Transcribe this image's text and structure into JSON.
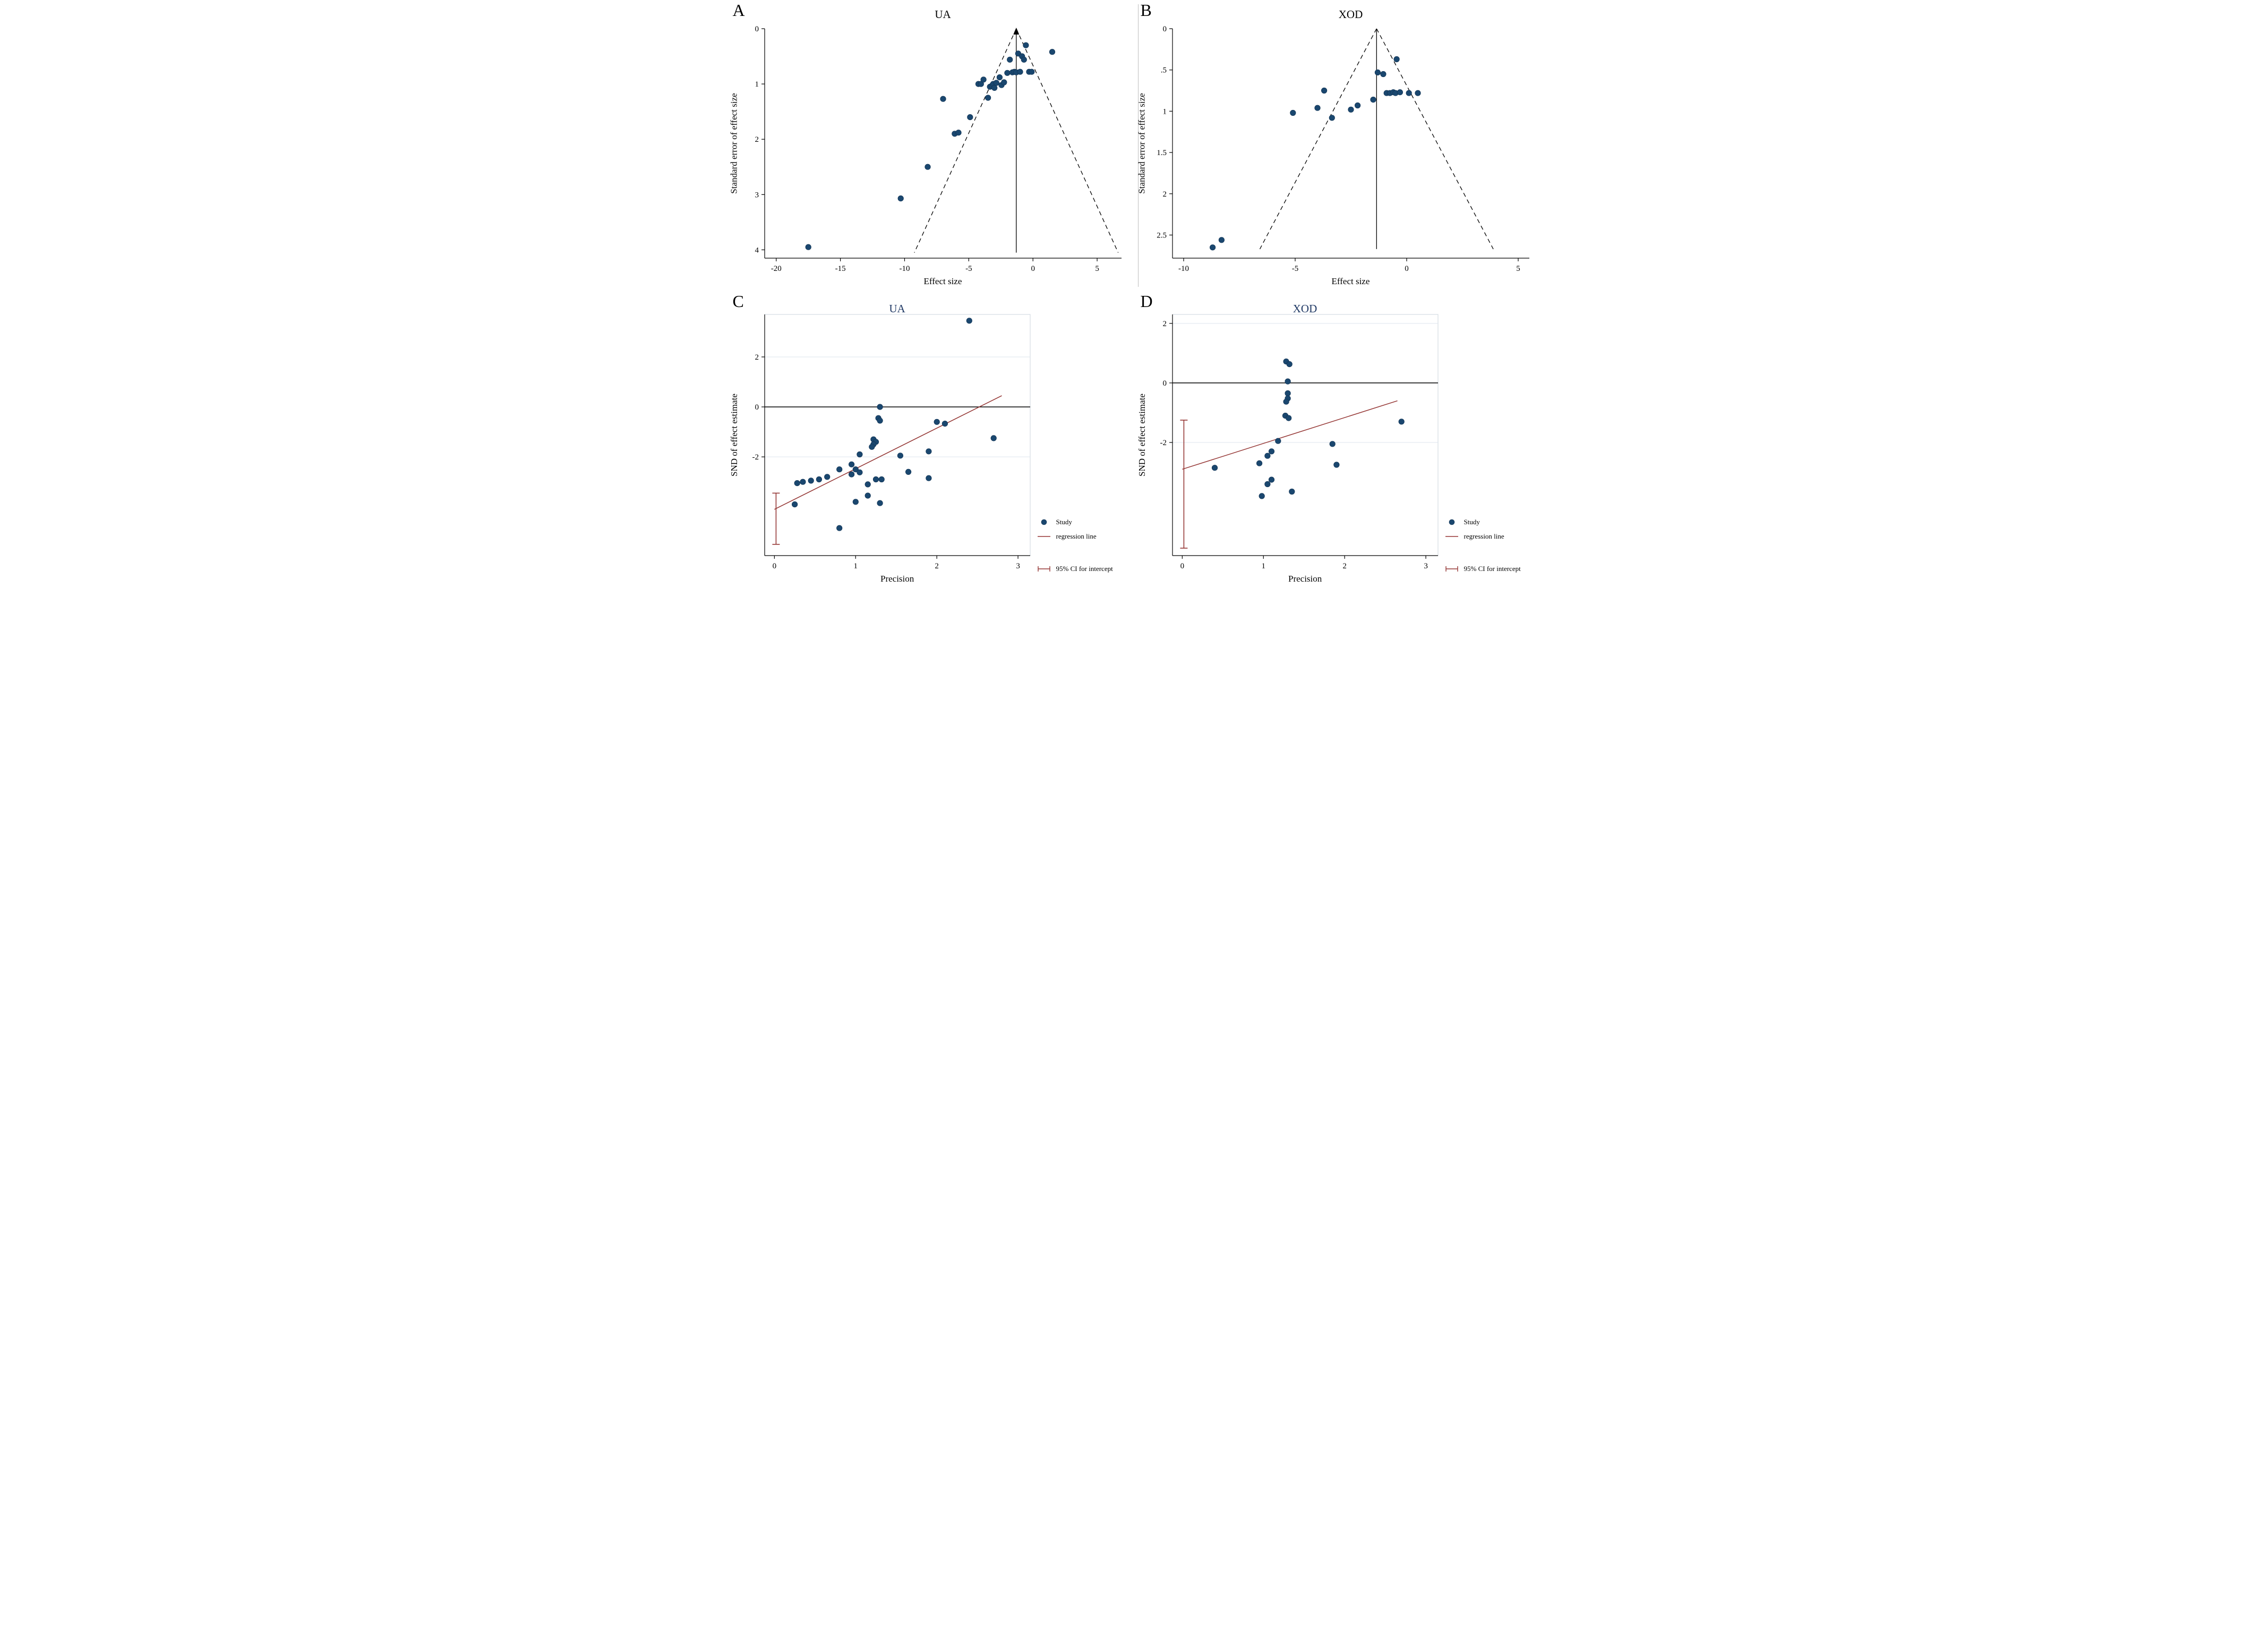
{
  "colors": {
    "point": "#1a476f",
    "point_edge": "#10304f",
    "regression": "#953735",
    "grid": "#dde5ed",
    "frame": "#ccd5dd",
    "axis": "#000000",
    "title_cd": "#1f3864",
    "divider": "#bdbdbd"
  },
  "chart_data": [
    {
      "id": "A",
      "panel_label": "A",
      "type": "scatter",
      "subtype": "funnel",
      "title": "UA",
      "xlabel": "Effect size",
      "ylabel": "Standard error of effect size",
      "xlim": [
        -20.9,
        6.9
      ],
      "xticks": [
        -20,
        -15,
        -10,
        -5,
        0,
        5
      ],
      "ylim": [
        0,
        4.15
      ],
      "y_inverted": true,
      "yticks": [
        0,
        1,
        2,
        3,
        4
      ],
      "ytick_labels": [
        "0",
        "1",
        "2",
        "3",
        "4"
      ],
      "grid": false,
      "center_line_x": -1.3,
      "pseudo_ci_max_se": 4.05,
      "arrow_top": true,
      "points": [
        [
          -17.5,
          3.95
        ],
        [
          -10.3,
          3.07
        ],
        [
          -8.2,
          2.5
        ],
        [
          -7.0,
          1.27
        ],
        [
          -6.1,
          1.9
        ],
        [
          -5.8,
          1.88
        ],
        [
          -4.9,
          1.6
        ],
        [
          -4.25,
          1.0
        ],
        [
          -4.05,
          1.0
        ],
        [
          -3.85,
          0.92
        ],
        [
          -3.5,
          1.25
        ],
        [
          -3.35,
          1.05
        ],
        [
          -3.2,
          1.03
        ],
        [
          -3.1,
          1.0
        ],
        [
          -3.0,
          1.07
        ],
        [
          -2.85,
          0.98
        ],
        [
          -2.6,
          0.88
        ],
        [
          -2.45,
          1.02
        ],
        [
          -2.25,
          0.97
        ],
        [
          -2.0,
          0.8
        ],
        [
          -1.8,
          0.56
        ],
        [
          -1.6,
          0.79
        ],
        [
          -1.45,
          0.78
        ],
        [
          -1.3,
          0.79
        ],
        [
          -1.15,
          0.45
        ],
        [
          -1.0,
          0.78
        ],
        [
          -0.85,
          0.5
        ],
        [
          -0.7,
          0.56
        ],
        [
          -0.55,
          0.3
        ],
        [
          -0.3,
          0.78
        ],
        [
          -0.1,
          0.78
        ],
        [
          1.5,
          0.42
        ]
      ]
    },
    {
      "id": "B",
      "panel_label": "B",
      "type": "scatter",
      "subtype": "funnel",
      "title": "XOD",
      "xlabel": "Effect size",
      "ylabel": "Standard error of effect size",
      "xlim": [
        -10.5,
        5.5
      ],
      "xticks": [
        -10,
        -5,
        0,
        5
      ],
      "ylim": [
        0,
        2.78
      ],
      "y_inverted": true,
      "yticks": [
        0,
        0.5,
        1,
        1.5,
        2,
        2.5
      ],
      "ytick_labels": [
        "0",
        ".5",
        "1",
        "1.5",
        "2",
        "2.5"
      ],
      "grid": false,
      "center_line_x": -1.35,
      "pseudo_ci_max_se": 2.67,
      "arrow_top": false,
      "points": [
        [
          -8.7,
          2.65
        ],
        [
          -8.3,
          2.56
        ],
        [
          -5.1,
          1.02
        ],
        [
          -4.0,
          0.96
        ],
        [
          -3.7,
          0.75
        ],
        [
          -3.35,
          1.08
        ],
        [
          -2.5,
          0.98
        ],
        [
          -2.2,
          0.93
        ],
        [
          -1.5,
          0.86
        ],
        [
          -1.3,
          0.53
        ],
        [
          -1.05,
          0.55
        ],
        [
          -0.9,
          0.78
        ],
        [
          -0.75,
          0.78
        ],
        [
          -0.6,
          0.77
        ],
        [
          -0.5,
          0.78
        ],
        [
          -0.45,
          0.37
        ],
        [
          -0.3,
          0.77
        ],
        [
          0.1,
          0.78
        ],
        [
          0.5,
          0.78
        ]
      ]
    },
    {
      "id": "C",
      "panel_label": "C",
      "type": "scatter",
      "subtype": "egger",
      "title": "UA",
      "xlabel": "Precision",
      "ylabel": "SND of effect estimate",
      "xlim": [
        -0.12,
        3.15
      ],
      "xticks": [
        0,
        1,
        2,
        3
      ],
      "ylim": [
        -5.95,
        3.7
      ],
      "yticks": [
        2,
        0,
        -2
      ],
      "ytick_labels": [
        "2",
        "0",
        "-2"
      ],
      "grid": true,
      "zero_line_y": 0,
      "regression": {
        "x0": 0,
        "y0": -4.1,
        "x1": 2.8,
        "y1": 0.45
      },
      "ci_intercept": {
        "x": 0.02,
        "low": -5.5,
        "high": -3.45
      },
      "legend": [
        "Study",
        "regression line",
        "95% CI for intercept"
      ],
      "points": [
        [
          2.4,
          3.45
        ],
        [
          1.3,
          0.0
        ],
        [
          1.28,
          -0.45
        ],
        [
          1.3,
          -0.55
        ],
        [
          2.0,
          -0.6
        ],
        [
          2.1,
          -0.67
        ],
        [
          2.7,
          -1.25
        ],
        [
          1.22,
          -1.3
        ],
        [
          1.25,
          -1.4
        ],
        [
          1.22,
          -1.5
        ],
        [
          1.2,
          -1.6
        ],
        [
          1.05,
          -1.9
        ],
        [
          1.55,
          -1.95
        ],
        [
          1.9,
          -1.78
        ],
        [
          0.95,
          -2.3
        ],
        [
          0.8,
          -2.5
        ],
        [
          1.0,
          -2.5
        ],
        [
          1.65,
          -2.6
        ],
        [
          0.95,
          -2.7
        ],
        [
          1.05,
          -2.62
        ],
        [
          1.9,
          -2.85
        ],
        [
          0.65,
          -2.8
        ],
        [
          0.55,
          -2.9
        ],
        [
          0.45,
          -2.95
        ],
        [
          0.35,
          -3.0
        ],
        [
          0.28,
          -3.05
        ],
        [
          1.15,
          -3.1
        ],
        [
          1.25,
          -2.9
        ],
        [
          1.32,
          -2.9
        ],
        [
          1.15,
          -3.55
        ],
        [
          1.0,
          -3.8
        ],
        [
          1.3,
          -3.85
        ],
        [
          0.25,
          -3.9
        ],
        [
          0.8,
          -4.85
        ]
      ]
    },
    {
      "id": "D",
      "panel_label": "D",
      "type": "scatter",
      "subtype": "egger",
      "title": "XOD",
      "xlabel": "Precision",
      "ylabel": "SND of effect estimate",
      "xlim": [
        -0.12,
        3.15
      ],
      "xticks": [
        0,
        1,
        2,
        3
      ],
      "ylim": [
        -5.8,
        2.3
      ],
      "yticks": [
        2,
        0,
        -2
      ],
      "ytick_labels": [
        "2",
        "0",
        "-2"
      ],
      "grid": true,
      "zero_line_y": 0,
      "regression": {
        "x0": 0,
        "y0": -2.9,
        "x1": 2.65,
        "y1": -0.6
      },
      "ci_intercept": {
        "x": 0.02,
        "low": -5.55,
        "high": -1.25
      },
      "legend": [
        "Study",
        "regression line",
        "95% CI for intercept"
      ],
      "points": [
        [
          1.28,
          0.72
        ],
        [
          1.32,
          0.63
        ],
        [
          1.3,
          0.05
        ],
        [
          1.3,
          -0.35
        ],
        [
          1.3,
          -0.52
        ],
        [
          1.28,
          -0.63
        ],
        [
          1.27,
          -1.1
        ],
        [
          1.31,
          -1.18
        ],
        [
          2.7,
          -1.3
        ],
        [
          1.18,
          -1.95
        ],
        [
          1.85,
          -2.05
        ],
        [
          1.1,
          -2.3
        ],
        [
          1.05,
          -2.45
        ],
        [
          0.95,
          -2.7
        ],
        [
          0.4,
          -2.85
        ],
        [
          1.9,
          -2.75
        ],
        [
          1.1,
          -3.25
        ],
        [
          1.05,
          -3.4
        ],
        [
          1.35,
          -3.65
        ],
        [
          0.98,
          -3.8
        ]
      ]
    }
  ]
}
